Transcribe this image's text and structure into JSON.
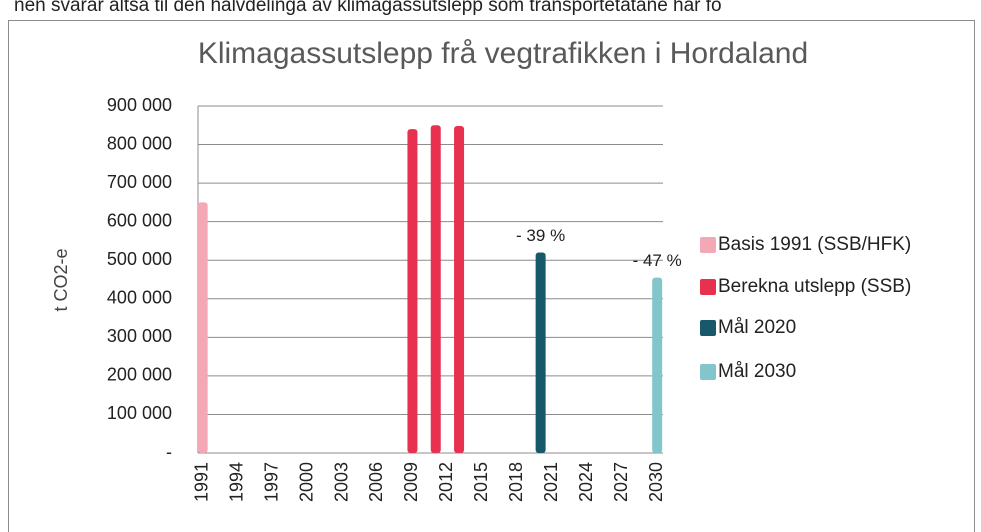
{
  "document": {
    "top_text": "nen svarar altså til den halvdelinga av klimagassutslepp som transportetatane har fo"
  },
  "chart_data": {
    "type": "bar",
    "title": "Klimagassutslepp frå vegtrafikken i Hordaland",
    "y_label": "t CO2-e",
    "xlim": [
      1990.6,
      2030.5
    ],
    "xticks": [
      1991,
      1994,
      1997,
      2000,
      2003,
      2006,
      2009,
      2012,
      2015,
      2018,
      2021,
      2024,
      2027,
      2030
    ],
    "ylim": [
      0,
      900000
    ],
    "yticks": [
      {
        "value": 0,
        "label": "-"
      },
      {
        "value": 100000,
        "label": "100 000"
      },
      {
        "value": 200000,
        "label": "200 000"
      },
      {
        "value": 300000,
        "label": "300 000"
      },
      {
        "value": 400000,
        "label": "400 000"
      },
      {
        "value": 500000,
        "label": "500 000"
      },
      {
        "value": 600000,
        "label": "600 000"
      },
      {
        "value": 700000,
        "label": "700 000"
      },
      {
        "value": 800000,
        "label": "800 000"
      },
      {
        "value": 900000,
        "label": "900 000"
      }
    ],
    "grid": true,
    "legend": "right",
    "series": [
      {
        "name": "Basis 1991 (SSB/HFK)",
        "color": "#f4a7b5",
        "x": [
          1991
        ],
        "values": [
          650000
        ]
      },
      {
        "name": "Berekna utslepp (SSB)",
        "color": "#e8304f",
        "x": [
          2009,
          2011,
          2013
        ],
        "values": [
          840000,
          850000,
          848000
        ]
      },
      {
        "name": "Mål 2020",
        "color": "#17596b",
        "x": [
          2020
        ],
        "values": [
          520000
        ],
        "annotations": [
          "- 39 %"
        ]
      },
      {
        "name": "Mål 2030",
        "color": "#82c6cc",
        "x": [
          2030
        ],
        "values": [
          455000
        ],
        "annotations": [
          "- 47 %"
        ]
      }
    ]
  }
}
